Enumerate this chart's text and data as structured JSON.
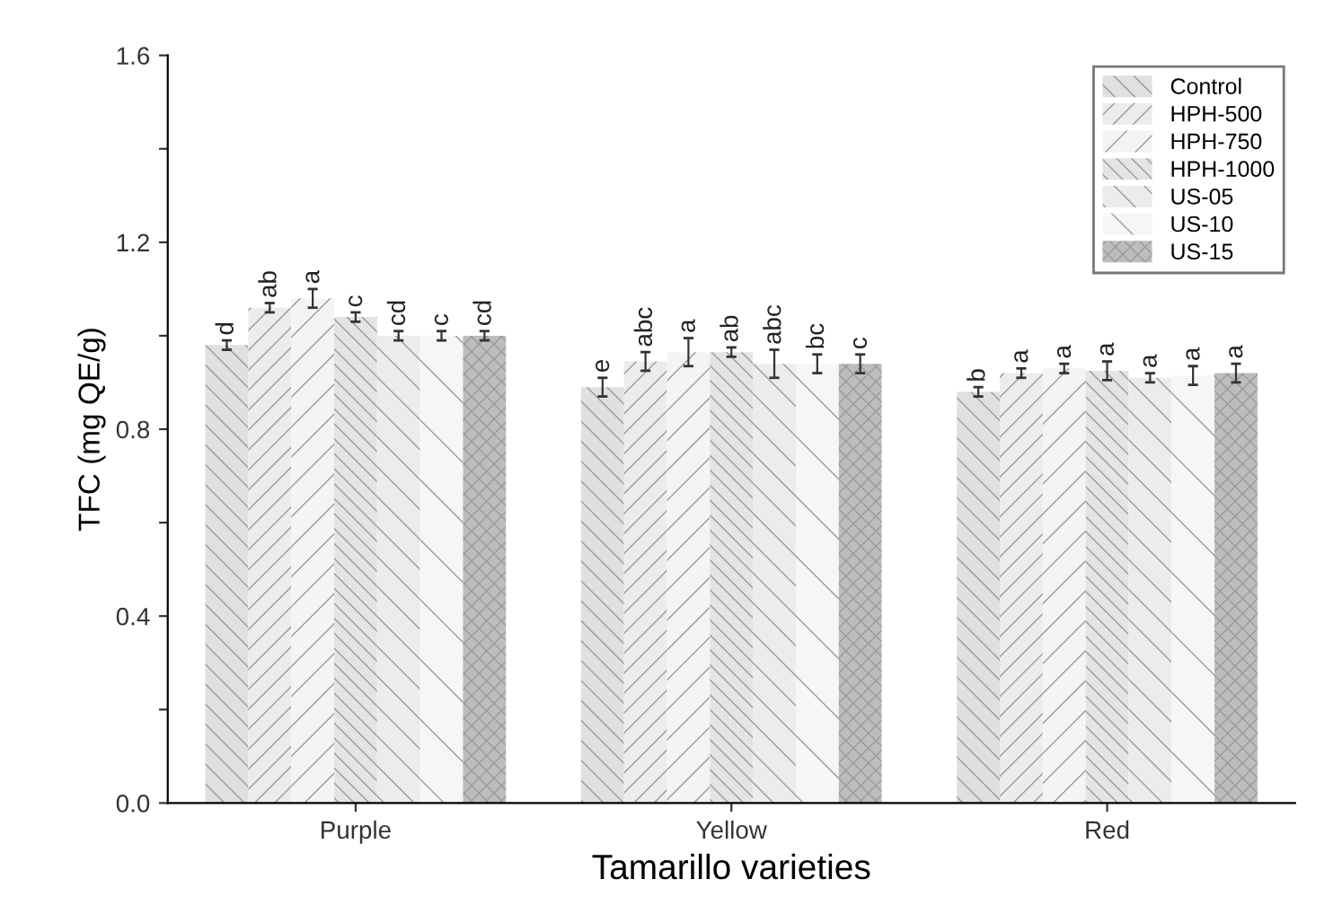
{
  "chart_data": {
    "type": "bar",
    "xlabel": "Tamarillo varieties",
    "ylabel": "TFC (mg QE/g)",
    "categories": [
      "Purple",
      "Yellow",
      "Red"
    ],
    "series": [
      {
        "name": "Control",
        "color": "#e0e0e0",
        "values": [
          0.98,
          0.89,
          0.88
        ],
        "errors": [
          0.01,
          0.02,
          0.01
        ],
        "value_labels": [
          "d",
          "e",
          "b"
        ]
      },
      {
        "name": "HPH-500",
        "color": "#ececec",
        "values": [
          1.06,
          0.945,
          0.92
        ],
        "errors": [
          0.01,
          0.02,
          0.01
        ],
        "value_labels": [
          "ab",
          "abc",
          "a"
        ]
      },
      {
        "name": "HPH-750",
        "color": "#f4f4f4",
        "values": [
          1.08,
          0.965,
          0.93
        ],
        "errors": [
          0.02,
          0.03,
          0.01
        ],
        "value_labels": [
          "a",
          "a",
          "a"
        ]
      },
      {
        "name": "HPH-1000",
        "color": "#e4e4e4",
        "values": [
          1.04,
          0.965,
          0.925
        ],
        "errors": [
          0.01,
          0.01,
          0.02
        ],
        "value_labels": [
          "c",
          "ab",
          "a"
        ]
      },
      {
        "name": "US-05",
        "color": "#ececec",
        "values": [
          1.0,
          0.94,
          0.91
        ],
        "errors": [
          0.01,
          0.03,
          0.01
        ],
        "value_labels": [
          "cd",
          "abc",
          "a"
        ]
      },
      {
        "name": "US-10",
        "color": "#f6f6f6",
        "values": [
          1.0,
          0.94,
          0.915
        ],
        "errors": [
          0.01,
          0.02,
          0.02
        ],
        "value_labels": [
          "c",
          "bc",
          "a"
        ]
      },
      {
        "name": "US-15",
        "color": "#bdbdbd",
        "values": [
          1.0,
          0.94,
          0.92
        ],
        "errors": [
          0.01,
          0.02,
          0.02
        ],
        "value_labels": [
          "cd",
          "c",
          "a"
        ]
      }
    ],
    "ylim": [
      0,
      1.6
    ],
    "yticks": [
      {
        "value": 0,
        "label": "0.0"
      },
      {
        "value": 0.2,
        "label": null
      },
      {
        "value": 0.4,
        "label": "0.4"
      },
      {
        "value": 0.6,
        "label": null
      },
      {
        "value": 0.8,
        "label": "0.8"
      },
      {
        "value": 1.0,
        "label": null
      },
      {
        "value": 1.2,
        "label": "1.2"
      },
      {
        "value": 1.4,
        "label": null
      },
      {
        "value": 1.6,
        "label": "1.6"
      }
    ],
    "legend": "top right",
    "grid": false
  }
}
